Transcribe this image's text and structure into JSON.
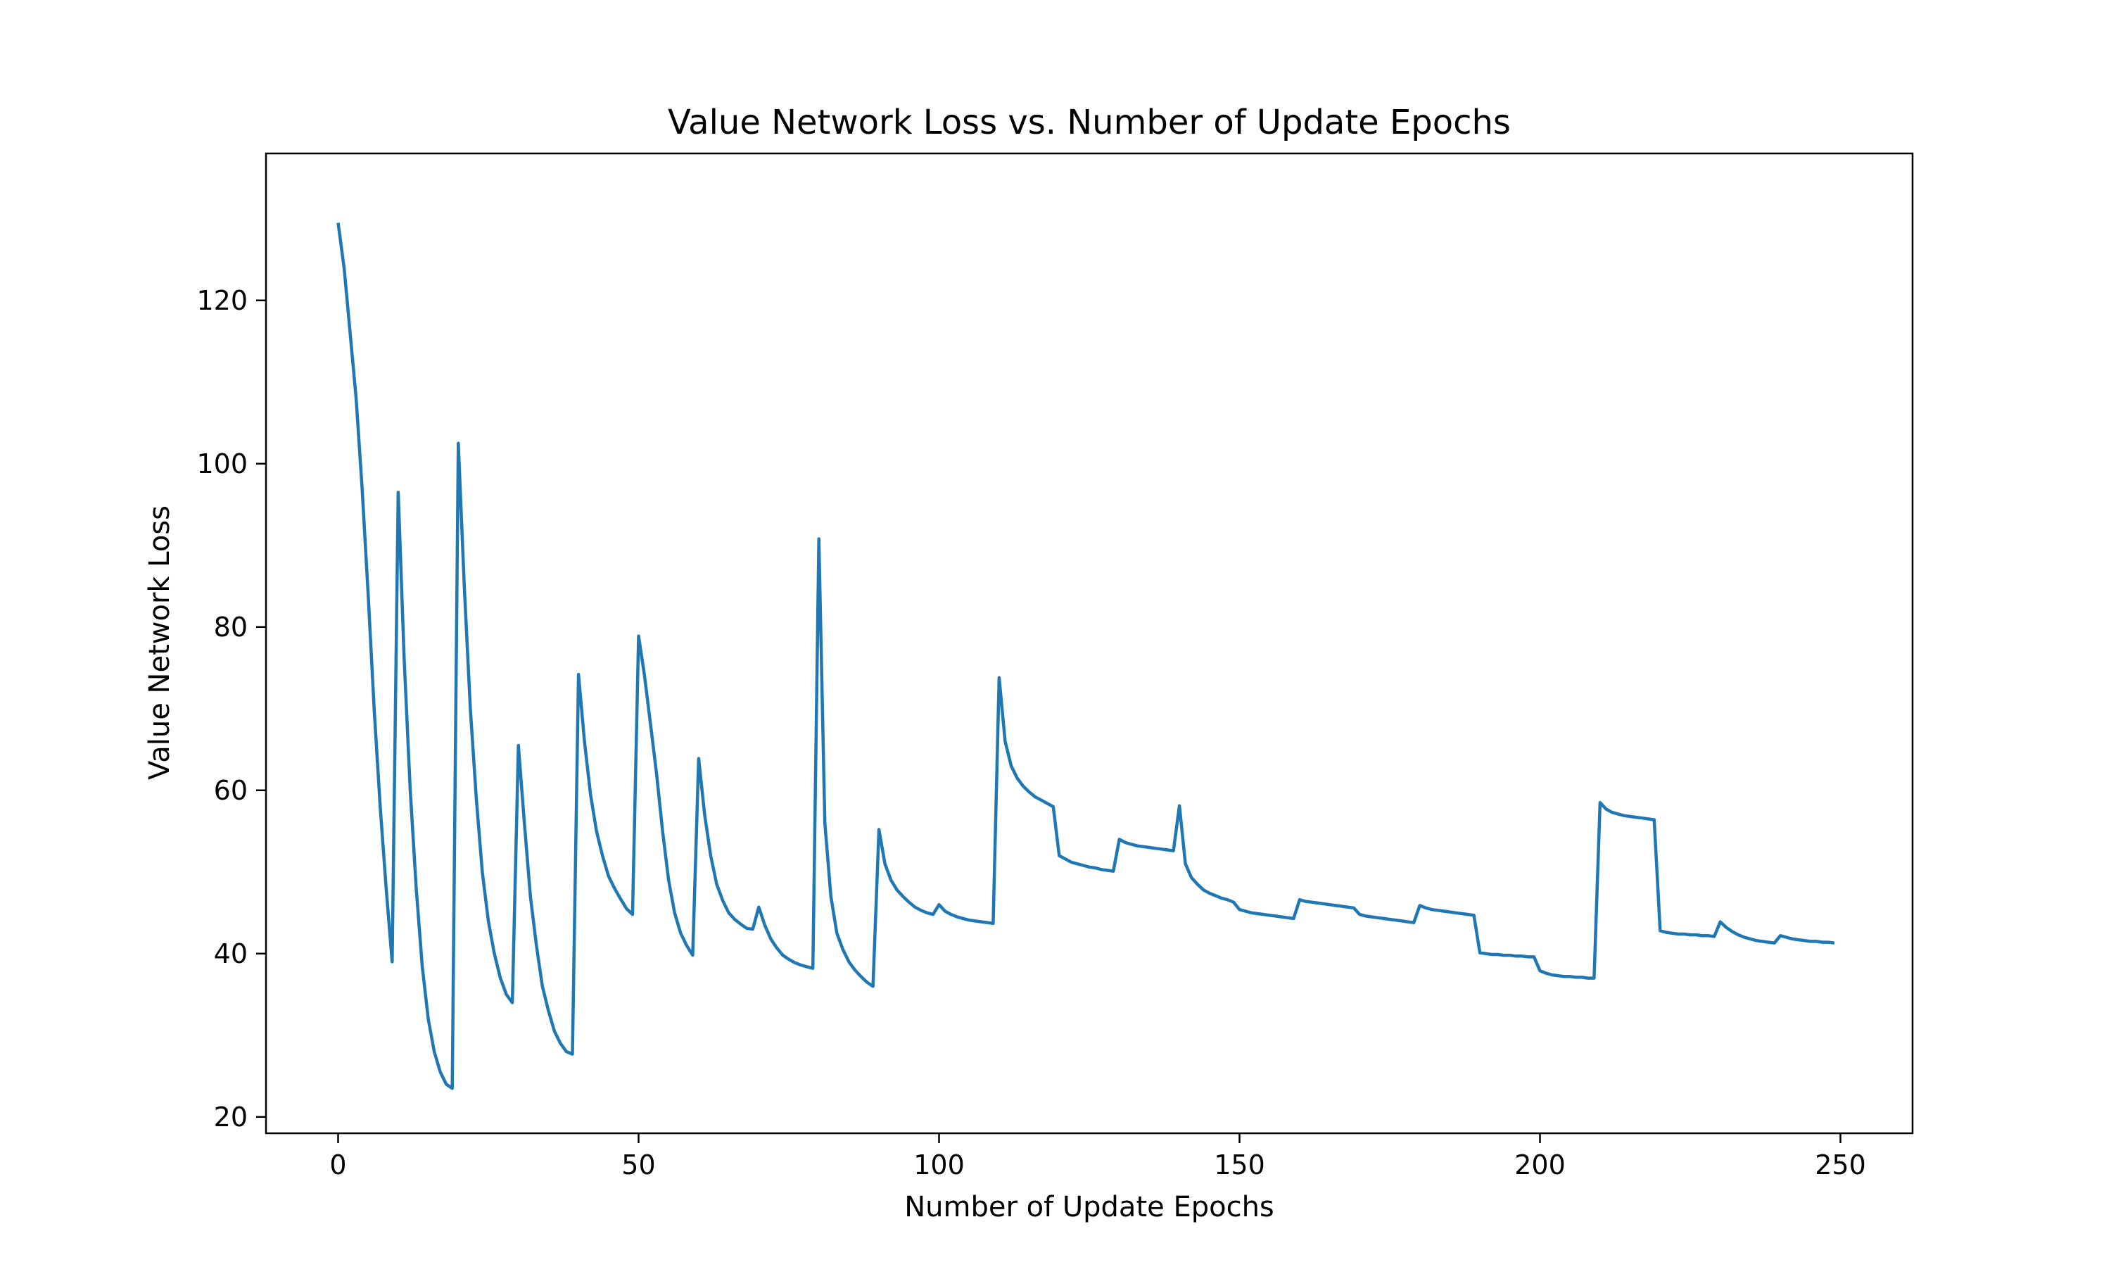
{
  "chart_data": {
    "type": "line",
    "title": "Value Network Loss vs. Number of Update Epochs",
    "xlabel": "Number of Update Epochs",
    "ylabel": "Value Network Loss",
    "xlim": [
      -12,
      262
    ],
    "ylim": [
      18,
      138
    ],
    "xticks": [
      0,
      50,
      100,
      150,
      200,
      250
    ],
    "yticks": [
      20,
      40,
      60,
      80,
      100,
      120
    ],
    "grid": false,
    "legend": "none",
    "series": [
      {
        "color": "#1f77b4",
        "x": [
          0,
          1,
          2,
          3,
          4,
          5,
          6,
          7,
          8,
          9,
          10,
          11,
          12,
          13,
          14,
          15,
          16,
          17,
          18,
          19,
          20,
          21,
          22,
          23,
          24,
          25,
          26,
          27,
          28,
          29,
          30,
          31,
          32,
          33,
          34,
          35,
          36,
          37,
          38,
          39,
          40,
          41,
          42,
          43,
          44,
          45,
          46,
          47,
          48,
          49,
          50,
          51,
          52,
          53,
          54,
          55,
          56,
          57,
          58,
          59,
          60,
          61,
          62,
          63,
          64,
          65,
          66,
          67,
          68,
          69,
          70,
          71,
          72,
          73,
          74,
          75,
          76,
          77,
          78,
          79,
          80,
          81,
          82,
          83,
          84,
          85,
          86,
          87,
          88,
          89,
          90,
          91,
          92,
          93,
          94,
          95,
          96,
          97,
          98,
          99,
          100,
          101,
          102,
          103,
          104,
          105,
          106,
          107,
          108,
          109,
          110,
          111,
          112,
          113,
          114,
          115,
          116,
          117,
          118,
          119,
          120,
          121,
          122,
          123,
          124,
          125,
          126,
          127,
          128,
          129,
          130,
          131,
          132,
          133,
          134,
          135,
          136,
          137,
          138,
          139,
          140,
          141,
          142,
          143,
          144,
          145,
          146,
          147,
          148,
          149,
          150,
          151,
          152,
          153,
          154,
          155,
          156,
          157,
          158,
          159,
          160,
          161,
          162,
          163,
          164,
          165,
          166,
          167,
          168,
          169,
          170,
          171,
          172,
          173,
          174,
          175,
          176,
          177,
          178,
          179,
          180,
          181,
          182,
          183,
          184,
          185,
          186,
          187,
          188,
          189,
          190,
          191,
          192,
          193,
          194,
          195,
          196,
          197,
          198,
          199,
          200,
          201,
          202,
          203,
          204,
          205,
          206,
          207,
          208,
          209,
          210,
          211,
          212,
          213,
          214,
          215,
          216,
          217,
          218,
          219,
          220,
          221,
          222,
          223,
          224,
          225,
          226,
          227,
          228,
          229,
          230,
          231,
          232,
          233,
          234,
          235,
          236,
          237,
          238,
          239,
          240,
          241,
          242,
          243,
          244,
          245,
          246,
          247,
          248,
          249
        ],
        "y": [
          129.5,
          124,
          116,
          108,
          97,
          84,
          70,
          58,
          48,
          39,
          96.5,
          76,
          60,
          48,
          38.5,
          32,
          28,
          25.5,
          24,
          23.5,
          102.5,
          85,
          70,
          59,
          50,
          44,
          40,
          37,
          35,
          34,
          65.5,
          56,
          47,
          41,
          36,
          33,
          30.5,
          29,
          28,
          27.7,
          74.2,
          66,
          59.5,
          55,
          52,
          49.5,
          48,
          46.7,
          45.5,
          44.8,
          78.9,
          74,
          68,
          62,
          55,
          49,
          45,
          42.5,
          41,
          39.8,
          63.9,
          57,
          52,
          48.5,
          46.5,
          45,
          44.2,
          43.6,
          43.1,
          43,
          45.7,
          43.5,
          41.8,
          40.7,
          39.8,
          39.3,
          38.9,
          38.6,
          38.4,
          38.2,
          90.8,
          56,
          47,
          42.5,
          40.5,
          39,
          38,
          37.2,
          36.5,
          36,
          55.2,
          51,
          49,
          47.8,
          47,
          46.3,
          45.7,
          45.3,
          45,
          44.8,
          46,
          45.2,
          44.8,
          44.5,
          44.3,
          44.1,
          44,
          43.9,
          43.8,
          43.7,
          73.8,
          66,
          63,
          61.5,
          60.5,
          59.8,
          59.2,
          58.8,
          58.4,
          58,
          52,
          51.6,
          51.2,
          51,
          50.8,
          50.6,
          50.5,
          50.3,
          50.2,
          50.1,
          54,
          53.6,
          53.4,
          53.2,
          53.1,
          53,
          52.9,
          52.8,
          52.7,
          52.6,
          58.1,
          51,
          49.3,
          48.5,
          47.8,
          47.4,
          47.1,
          46.8,
          46.6,
          46.3,
          45.4,
          45.2,
          45,
          44.9,
          44.8,
          44.7,
          44.6,
          44.5,
          44.4,
          44.3,
          46.6,
          46.4,
          46.3,
          46.2,
          46.1,
          46,
          45.9,
          45.8,
          45.7,
          45.6,
          44.8,
          44.6,
          44.5,
          44.4,
          44.3,
          44.2,
          44.1,
          44,
          43.9,
          43.8,
          45.9,
          45.6,
          45.4,
          45.3,
          45.2,
          45.1,
          45,
          44.9,
          44.8,
          44.7,
          40.1,
          40,
          39.9,
          39.9,
          39.8,
          39.8,
          39.7,
          39.7,
          39.6,
          39.6,
          37.9,
          37.6,
          37.4,
          37.3,
          37.2,
          37.2,
          37.1,
          37.1,
          37,
          37,
          58.5,
          57.7,
          57.3,
          57.1,
          56.9,
          56.8,
          56.7,
          56.6,
          56.5,
          56.4,
          42.8,
          42.6,
          42.5,
          42.4,
          42.4,
          42.3,
          42.3,
          42.2,
          42.2,
          42.1,
          43.9,
          43.2,
          42.7,
          42.3,
          42,
          41.8,
          41.6,
          41.5,
          41.4,
          41.3,
          42.2,
          42,
          41.8,
          41.7,
          41.6,
          41.5,
          41.5,
          41.4,
          41.4,
          41.3
        ]
      }
    ]
  }
}
